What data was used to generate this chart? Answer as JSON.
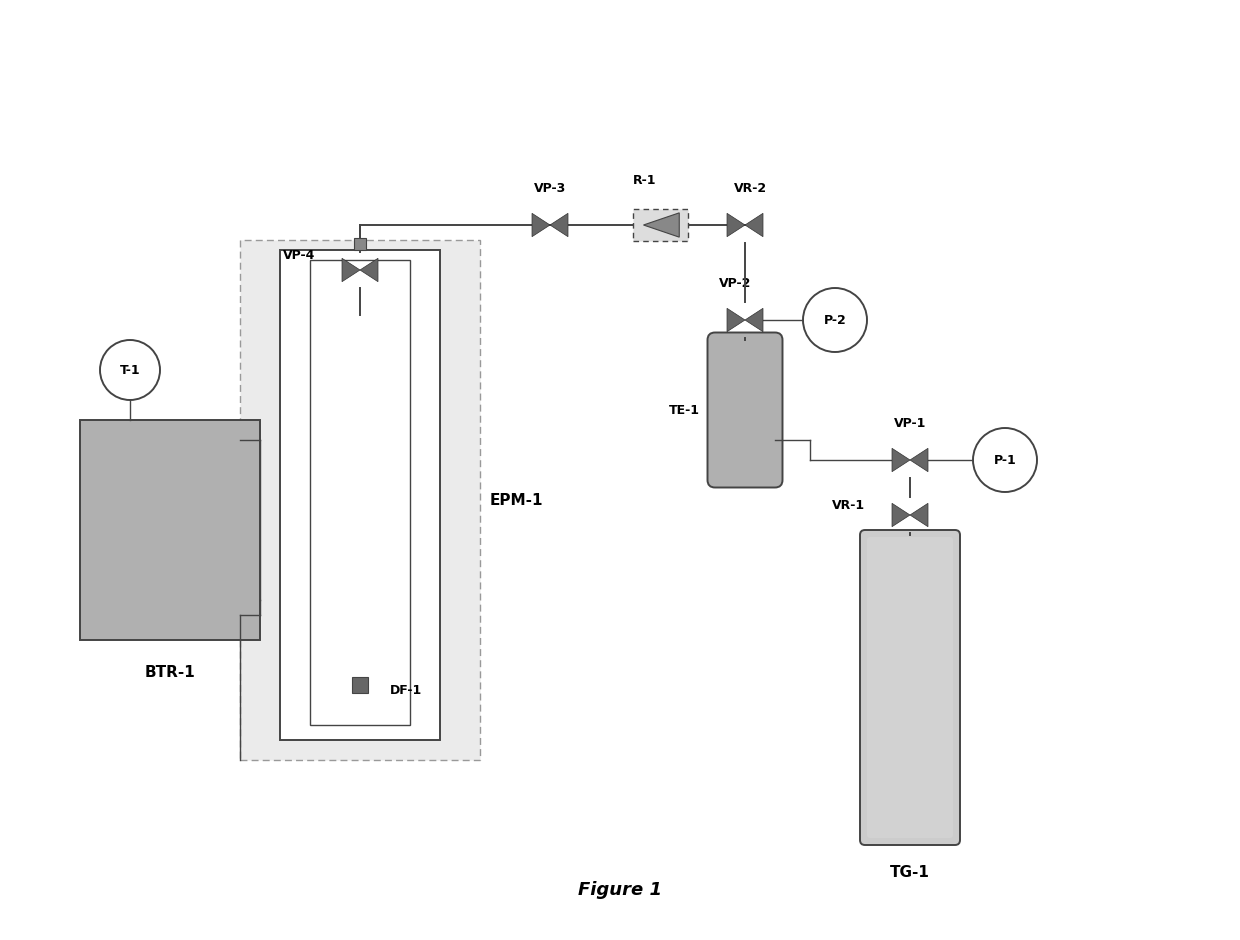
{
  "bg_color": "#ffffff",
  "line_color": "#444444",
  "fill_gray_btr": "#b0b0b0",
  "fill_gray_te": "#b0b0b0",
  "fill_gray_tg": "#cccccc",
  "fill_epm_outer": "#e0e0e0",
  "fill_epm_inner": "#ffffff",
  "figure_caption": "Figure 1",
  "labels": {
    "BTR1": "BTR-1",
    "T1": "T-1",
    "EPM1": "EPM-1",
    "DF1": "DF-1",
    "VP3": "VP-3",
    "VP4": "VP-4",
    "VP2": "VP-2",
    "VP1": "VP-1",
    "VR1": "VR-1",
    "VR2": "VR-2",
    "R1": "R-1",
    "P1": "P-1",
    "P2": "P-2",
    "TE1": "TE-1",
    "TG1": "TG-1"
  }
}
